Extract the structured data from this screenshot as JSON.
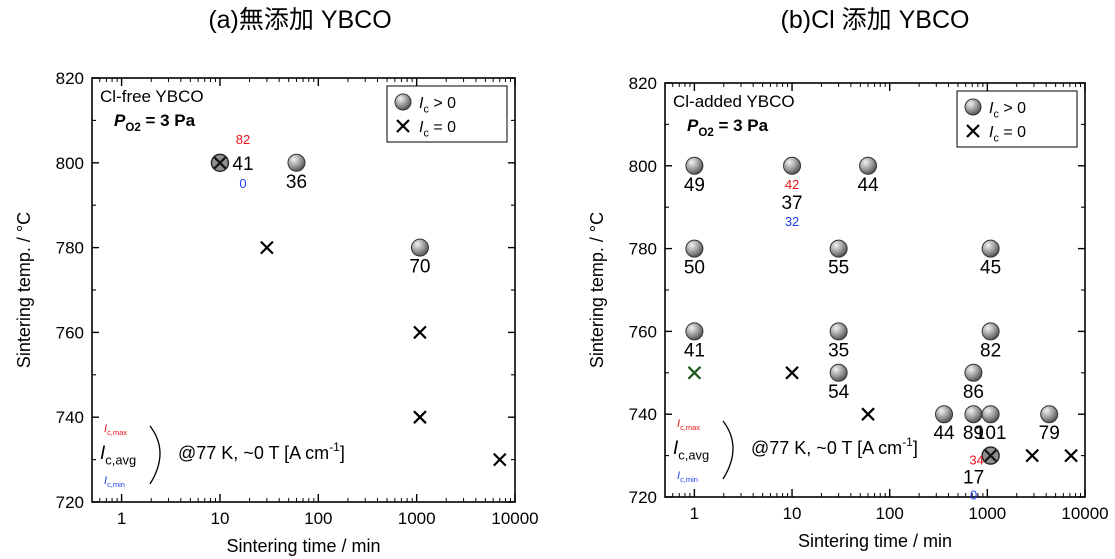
{
  "figure": {
    "colors": {
      "max_label": "#e8141b",
      "min_label": "#1f3ff0",
      "marker_fill": "#8c8c8c",
      "axis": "#000000"
    }
  },
  "chart_data": [
    {
      "type": "scatter",
      "heading": "(a)無添加 YBCO",
      "title": "Cl-free YBCO",
      "condition": {
        "main": "P",
        "sub": "O2",
        "tail": " = 3 Pa"
      },
      "xlabel": "Sintering time / min",
      "ylabel": "Sintering temp. / °C",
      "xscale": "log",
      "xlim": [
        0.5,
        10000
      ],
      "ylim": [
        720,
        820
      ],
      "xticks": [
        {
          "v": 1,
          "label": "1"
        },
        {
          "v": 10,
          "label": "10"
        },
        {
          "v": 100,
          "label": "100"
        },
        {
          "v": 1000,
          "label": "1000"
        },
        {
          "v": 10000,
          "label": "10000"
        }
      ],
      "yticks": [
        {
          "v": 720,
          "label": "720"
        },
        {
          "v": 740,
          "label": "740"
        },
        {
          "v": 760,
          "label": "760"
        },
        {
          "v": 780,
          "label": "780"
        },
        {
          "v": 800,
          "label": "800"
        },
        {
          "v": 820,
          "label": "820"
        }
      ],
      "legend": {
        "position": "top-right",
        "entries": [
          {
            "marker": "circle",
            "label": "I",
            "sub": "c",
            "tail": " > 0"
          },
          {
            "marker": "cross",
            "label": "I",
            "sub": "c",
            "tail": " = 0"
          }
        ]
      },
      "series": [
        {
          "name": "Ic > 0",
          "marker": "circle",
          "points": [
            {
              "x": 60,
              "y": 800,
              "label": "36"
            },
            {
              "x": 1080,
              "y": 780,
              "label": "70"
            }
          ]
        },
        {
          "name": "Ic = 0",
          "marker": "cross",
          "points": [
            {
              "x": 30,
              "y": 780
            },
            {
              "x": 1080,
              "y": 760
            },
            {
              "x": 1080,
              "y": 740
            },
            {
              "x": 7000,
              "y": 730
            }
          ]
        },
        {
          "name": "mixed",
          "marker": "circle-cross",
          "points": [
            {
              "x": 10,
              "y": 800,
              "avg": "41",
              "max": "82",
              "min": "0"
            }
          ]
        }
      ],
      "annotation": {
        "max": "I",
        "max_sub": "c,max",
        "avg": "I",
        "avg_sub": "c,avg",
        "min": "I",
        "min_sub": "c,min",
        "text": "@77 K, ~0 T [A cm",
        "exp": "-1",
        "close": "]"
      }
    },
    {
      "type": "scatter",
      "heading": "(b)Cl 添加 YBCO",
      "title": "Cl-added YBCO",
      "condition": {
        "main": "P",
        "sub": "O2",
        "tail": " = 3 Pa"
      },
      "xlabel": "Sintering time / min",
      "ylabel": "Sintering temp. / °C",
      "xscale": "log",
      "xlim": [
        0.5,
        10000
      ],
      "ylim": [
        720,
        820
      ],
      "xticks": [
        {
          "v": 1,
          "label": "1"
        },
        {
          "v": 10,
          "label": "10"
        },
        {
          "v": 100,
          "label": "100"
        },
        {
          "v": 1000,
          "label": "1000"
        },
        {
          "v": 10000,
          "label": "10000"
        }
      ],
      "yticks": [
        {
          "v": 720,
          "label": "720"
        },
        {
          "v": 740,
          "label": "740"
        },
        {
          "v": 760,
          "label": "760"
        },
        {
          "v": 780,
          "label": "780"
        },
        {
          "v": 800,
          "label": "800"
        },
        {
          "v": 820,
          "label": "820"
        }
      ],
      "legend": {
        "position": "top-right",
        "entries": [
          {
            "marker": "circle",
            "label": "I",
            "sub": "c",
            "tail": " > 0"
          },
          {
            "marker": "cross",
            "label": "I",
            "sub": "c",
            "tail": " = 0"
          }
        ]
      },
      "series": [
        {
          "name": "Ic > 0",
          "marker": "circle",
          "points": [
            {
              "x": 1,
              "y": 800,
              "label": "49"
            },
            {
              "x": 60,
              "y": 800,
              "label": "44"
            },
            {
              "x": 1,
              "y": 780,
              "label": "50"
            },
            {
              "x": 30,
              "y": 780,
              "label": "55"
            },
            {
              "x": 1080,
              "y": 780,
              "label": "45"
            },
            {
              "x": 1,
              "y": 760,
              "label": "41"
            },
            {
              "x": 30,
              "y": 760,
              "label": "35"
            },
            {
              "x": 1080,
              "y": 760,
              "label": "82"
            },
            {
              "x": 30,
              "y": 750,
              "label": "54"
            },
            {
              "x": 720,
              "y": 750,
              "label": "86"
            },
            {
              "x": 360,
              "y": 740,
              "label": "44"
            },
            {
              "x": 720,
              "y": 740,
              "label": "89"
            },
            {
              "x": 1080,
              "y": 740,
              "label": "101"
            },
            {
              "x": 4300,
              "y": 740,
              "label": "79"
            }
          ]
        },
        {
          "name": "mixed",
          "marker": "circle-open",
          "points": [
            {
              "x": 10,
              "y": 800,
              "avg": "37",
              "max": "42",
              "min": "32"
            }
          ]
        },
        {
          "name": "mixed",
          "marker": "circle-cross",
          "points": [
            {
              "x": 1080,
              "y": 730,
              "avg": "17",
              "max": "34",
              "min": "0"
            }
          ]
        },
        {
          "name": "Ic = 0",
          "marker": "cross",
          "points": [
            {
              "x": 1,
              "y": 750,
              "color": "#1f5a1f"
            },
            {
              "x": 10,
              "y": 750
            },
            {
              "x": 60,
              "y": 740
            },
            {
              "x": 2880,
              "y": 730
            },
            {
              "x": 7200,
              "y": 730
            }
          ]
        }
      ],
      "annotation": {
        "max": "I",
        "max_sub": "c,max",
        "avg": "I",
        "avg_sub": "c,avg",
        "min": "I",
        "min_sub": "c,min",
        "text": "@77 K, ~0 T [A cm",
        "exp": "-1",
        "close": "]"
      }
    }
  ]
}
